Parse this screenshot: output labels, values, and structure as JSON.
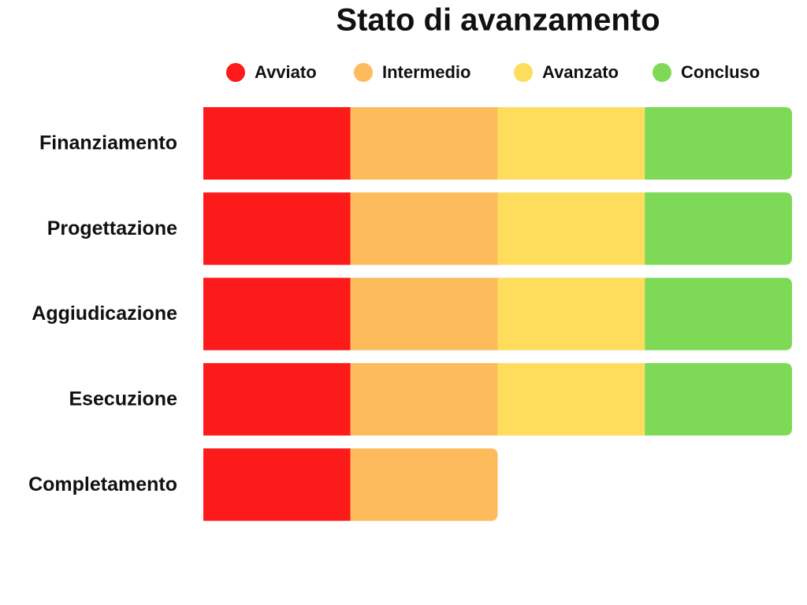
{
  "chart_data": {
    "type": "stacked-bar-horizontal",
    "title": "Stato di avanzamento",
    "categories": [
      "Finanziamento",
      "Progettazione",
      "Aggiudicazione",
      "Esecuzione",
      "Completamento"
    ],
    "series": [
      {
        "name": "Avviato",
        "color": "#fd1a1a",
        "values": [
          1,
          1,
          1,
          1,
          1
        ]
      },
      {
        "name": "Intermedio",
        "color": "#fdbb5b",
        "values": [
          1,
          1,
          1,
          1,
          1
        ]
      },
      {
        "name": "Avanzato",
        "color": "#fedd5c",
        "values": [
          1,
          1,
          1,
          1,
          0
        ]
      },
      {
        "name": "Concluso",
        "color": "#7ed957",
        "values": [
          1,
          1,
          1,
          1,
          0
        ]
      }
    ],
    "xlim": [
      0,
      4
    ]
  }
}
